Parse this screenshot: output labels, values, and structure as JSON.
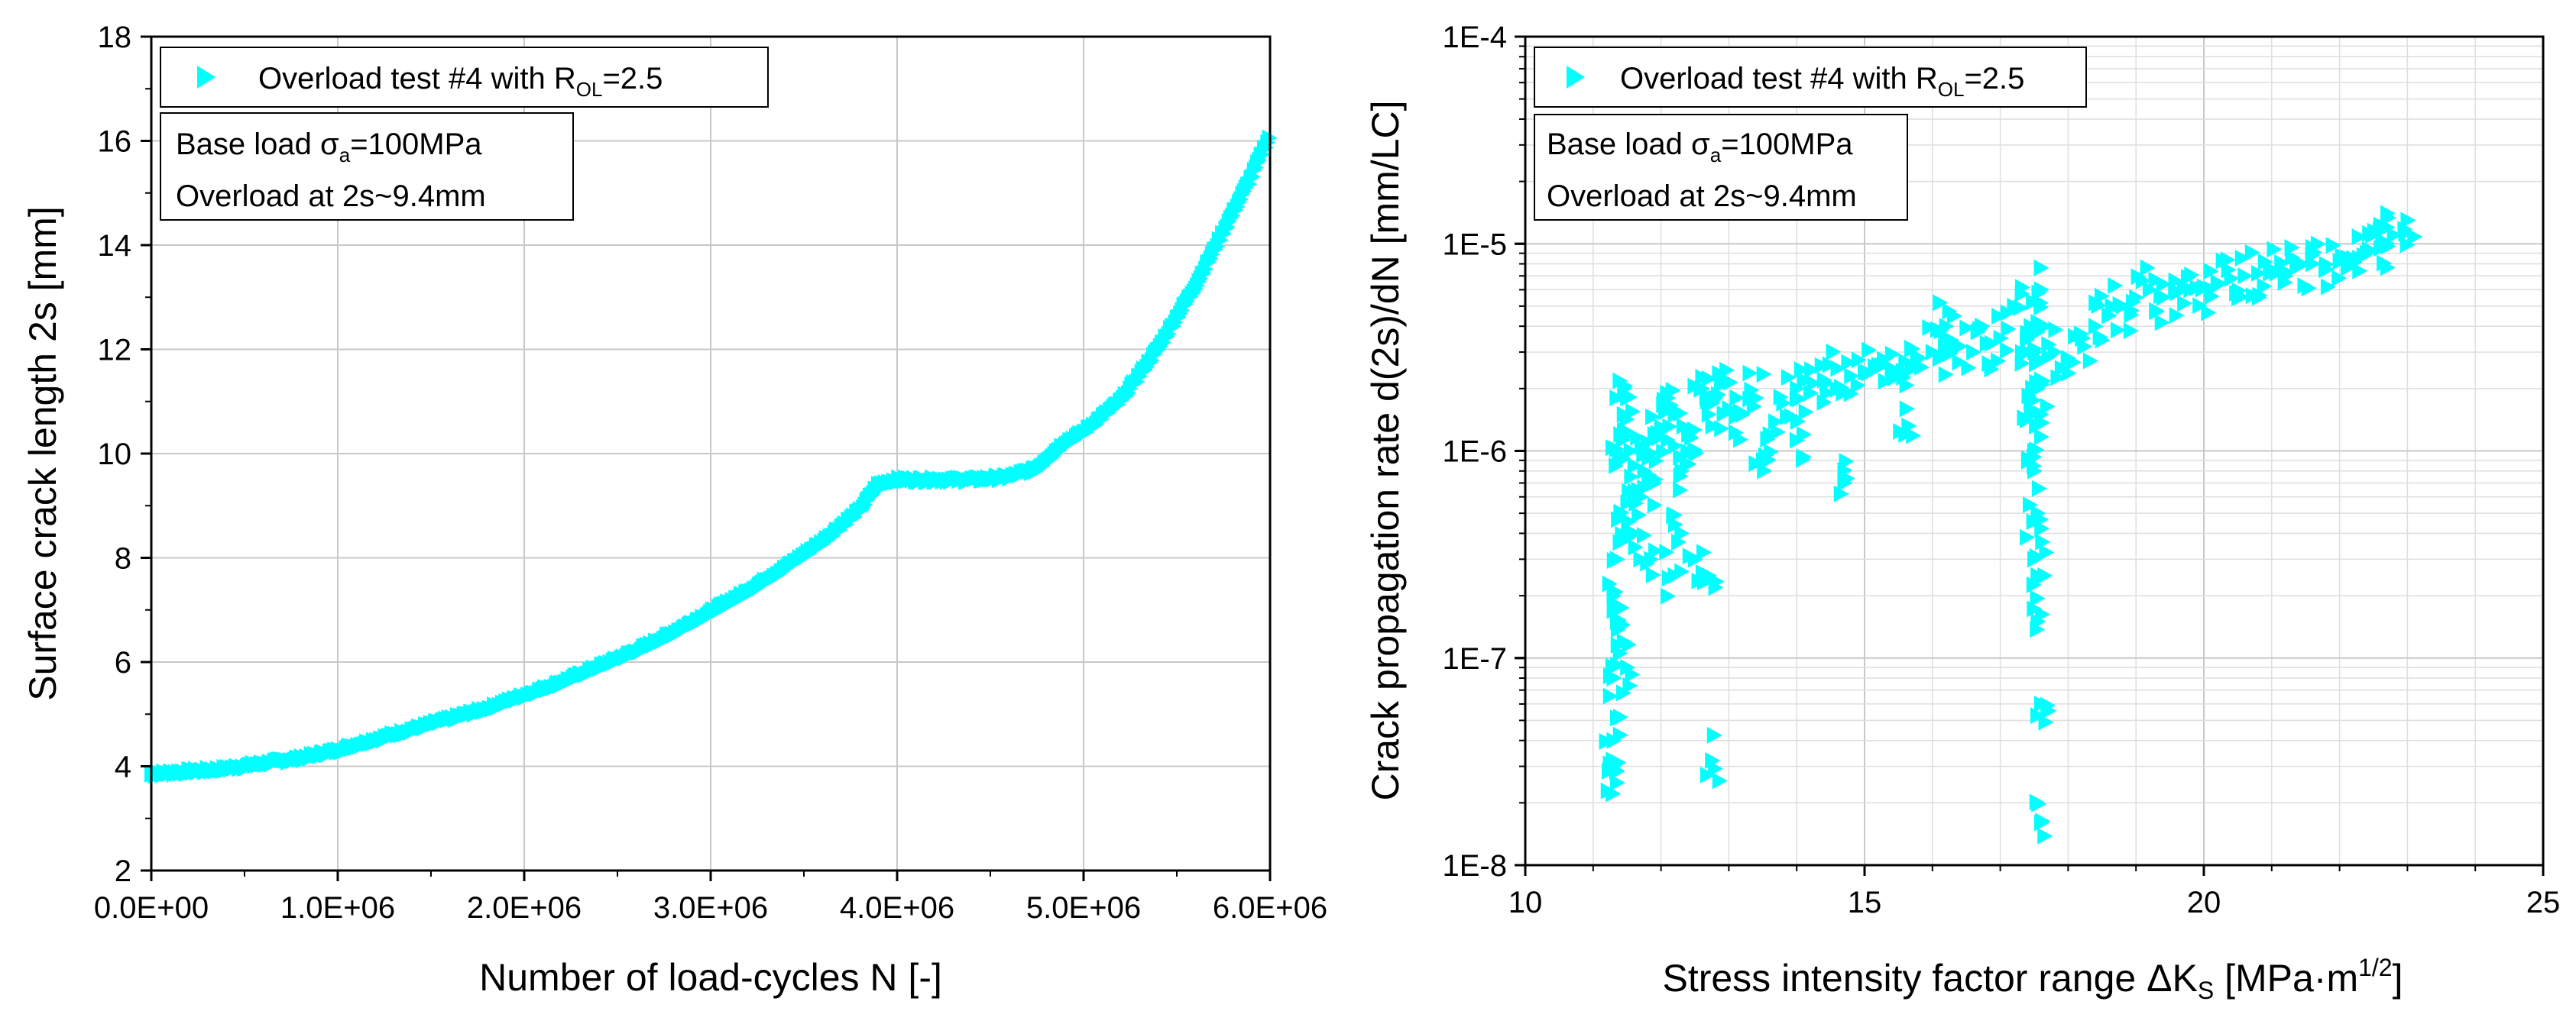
{
  "chart_data": [
    {
      "type": "scatter",
      "title": "",
      "xlabel": "Number of load-cycles N [-]",
      "ylabel": "Surface crack length 2s [mm]",
      "xlim": [
        0,
        6000000
      ],
      "ylim": [
        2,
        18
      ],
      "x_scale": "linear",
      "y_scale": "linear",
      "grid": true,
      "x_ticks": [
        0,
        1000000,
        2000000,
        3000000,
        4000000,
        5000000,
        6000000
      ],
      "x_tick_labels": [
        "0.0E+00",
        "1.0E+06",
        "2.0E+06",
        "3.0E+06",
        "4.0E+06",
        "5.0E+06",
        "6.0E+06"
      ],
      "y_ticks": [
        2,
        4,
        6,
        8,
        10,
        12,
        14,
        16,
        18
      ],
      "y_tick_labels": [
        "2",
        "4",
        "6",
        "8",
        "10",
        "12",
        "14",
        "16",
        "18"
      ],
      "legend_position": "top-left",
      "legend": {
        "text": "Overload test #4 with R",
        "sub": "OL",
        "suffix": "=2.5"
      },
      "annotation": {
        "line1_prefix": "Base load σ",
        "line1_sub": "a",
        "line1_suffix": "=100MPa",
        "line2": "Overload at 2s~9.4mm"
      },
      "color": "#00ffff",
      "series": [
        {
          "name": "Overload test #4 with R_OL=2.5",
          "x": [
            0,
            200000,
            400000,
            600000,
            800000,
            1000000,
            1200000,
            1400000,
            1600000,
            1800000,
            2000000,
            2200000,
            2400000,
            2600000,
            2800000,
            3000000,
            3200000,
            3400000,
            3600000,
            3800000,
            3900000,
            4000000,
            4200000,
            4400000,
            4600000,
            4750000,
            4900000,
            5000000,
            5200000,
            5400000,
            5600000,
            5800000,
            5900000,
            6000000
          ],
          "y": [
            3.85,
            3.9,
            3.95,
            4.05,
            4.15,
            4.3,
            4.5,
            4.7,
            4.9,
            5.1,
            5.35,
            5.6,
            5.9,
            6.2,
            6.55,
            6.95,
            7.35,
            7.8,
            8.3,
            8.9,
            9.4,
            9.5,
            9.5,
            9.5,
            9.55,
            9.7,
            10.2,
            10.4,
            11.0,
            12.0,
            13.2,
            14.6,
            15.3,
            16.1
          ]
        }
      ]
    },
    {
      "type": "scatter",
      "title": "",
      "xlabel_prefix": "Stress intensity factor range ΔK",
      "xlabel_sub": "S",
      "xlabel_mid": " [MPa·m",
      "xlabel_sup": "1/2",
      "xlabel_suffix": "]",
      "ylabel": "Crack propagation rate d(2s)/dN [mm/LC]",
      "xlim": [
        10,
        25
      ],
      "ylim": [
        1e-08,
        0.0001
      ],
      "x_scale": "linear",
      "y_scale": "log",
      "grid": true,
      "x_ticks": [
        10,
        15,
        20,
        25
      ],
      "x_tick_labels": [
        "10",
        "15",
        "20",
        "25"
      ],
      "y_ticks": [
        1e-08,
        1e-07,
        1e-06,
        1e-05,
        0.0001
      ],
      "y_tick_labels": [
        "1E-8",
        "1E-7",
        "1E-6",
        "1E-5",
        "1E-4"
      ],
      "legend_position": "top-left",
      "legend": {
        "text": "Overload test #4 with R",
        "sub": "OL",
        "suffix": "=2.5"
      },
      "annotation": {
        "line1_prefix": "Base load σ",
        "line1_sub": "a",
        "line1_suffix": "=100MPa",
        "line2": "Overload at 2s~9.4mm"
      },
      "color": "#00ffff",
      "series": [
        {
          "name": "Overload test #4 with R_OL=2.5",
          "x": [
            11.3,
            11.3,
            11.35,
            11.35,
            11.4,
            11.4,
            11.45,
            11.5,
            11.55,
            11.6,
            11.3,
            11.35,
            11.5,
            11.3,
            11.45,
            11.4,
            11.6,
            11.7,
            11.75,
            11.8,
            11.85,
            11.9,
            12.0,
            12.1,
            12.2,
            12.3,
            12.4,
            12.5,
            12.6,
            12.7,
            12.8,
            12.9,
            13.0,
            12.2,
            12.5,
            12.7,
            12.3,
            12.75,
            13.2,
            13.4,
            13.6,
            13.8,
            14.0,
            14.2,
            14.4,
            14.6,
            14.8,
            15.0,
            15.2,
            15.4,
            15.6,
            15.8,
            16.0,
            16.2,
            16.4,
            16.6,
            16.8,
            17.0,
            17.2,
            13.5,
            14.1,
            14.7,
            15.6,
            16.2,
            17.4,
            17.45,
            17.5,
            17.5,
            17.55,
            17.6,
            17.6,
            17.65,
            17.5,
            17.55,
            17.6,
            17.5,
            17.55,
            17.6,
            17.65,
            17.6,
            17.8,
            18.0,
            18.2,
            18.4,
            18.6,
            18.8,
            19.0,
            19.2,
            19.4,
            19.6,
            19.8,
            20.0,
            20.2,
            20.4,
            20.6,
            20.8,
            21.0,
            21.2,
            21.4,
            21.6,
            21.8,
            22.0,
            22.2,
            22.4,
            22.6,
            22.7,
            22.8,
            23.0
          ],
          "y": [
            3e-08,
            8e-08,
            1.5e-07,
            3e-07,
            5e-07,
            9e-07,
            1.5e-06,
            1.8e-06,
            1e-06,
            6e-07,
            4e-08,
            2.5e-08,
            9e-08,
            2e-07,
            1.2e-07,
            1.2e-06,
            4e-07,
            6e-07,
            8e-07,
            1.1e-06,
            3e-07,
            7e-07,
            1.3e-06,
            1.8e-06,
            1.5e-06,
            8e-07,
            1.2e-06,
            1e-06,
            2e-06,
            1.5e-06,
            1.8e-06,
            2.2e-06,
            1.6e-06,
            2.5e-07,
            3e-07,
            2.5e-07,
            4e-07,
            3.2e-08,
            1.5e-06,
            1.8e-06,
            1.2e-06,
            1.7e-06,
            2e-06,
            1.9e-06,
            2.2e-06,
            2.5e-06,
            2.3e-06,
            2.4e-06,
            2.6e-06,
            2.5e-06,
            2.7e-06,
            2.8e-06,
            3e-06,
            2.9e-06,
            3.2e-06,
            3e-06,
            3.3e-06,
            3.5e-06,
            5e-06,
            9e-07,
            1.2e-06,
            7e-07,
            1.2e-06,
            4e-06,
            3e-06,
            1.5e-06,
            8e-07,
            3e-07,
            1.5e-07,
            6e-08,
            1.6e-08,
            2.5e-07,
            1e-06,
            5e-07,
            1.5e-06,
            3e-06,
            2e-06,
            6e-06,
            4e-06,
            2.2e-06,
            3e-06,
            2.8e-06,
            3.5e-06,
            4e-06,
            4.5e-06,
            5e-06,
            5.5e-06,
            6e-06,
            5.5e-06,
            5.8e-06,
            6e-06,
            6.2e-06,
            6.5e-06,
            6.8e-06,
            7e-06,
            7.2e-06,
            7.5e-06,
            7e-06,
            7.8e-06,
            8e-06,
            7.5e-06,
            8.2e-06,
            8.5e-06,
            9e-06,
            9.5e-06,
            1e-05,
            1.1e-05,
            1.3e-05
          ]
        }
      ]
    }
  ]
}
